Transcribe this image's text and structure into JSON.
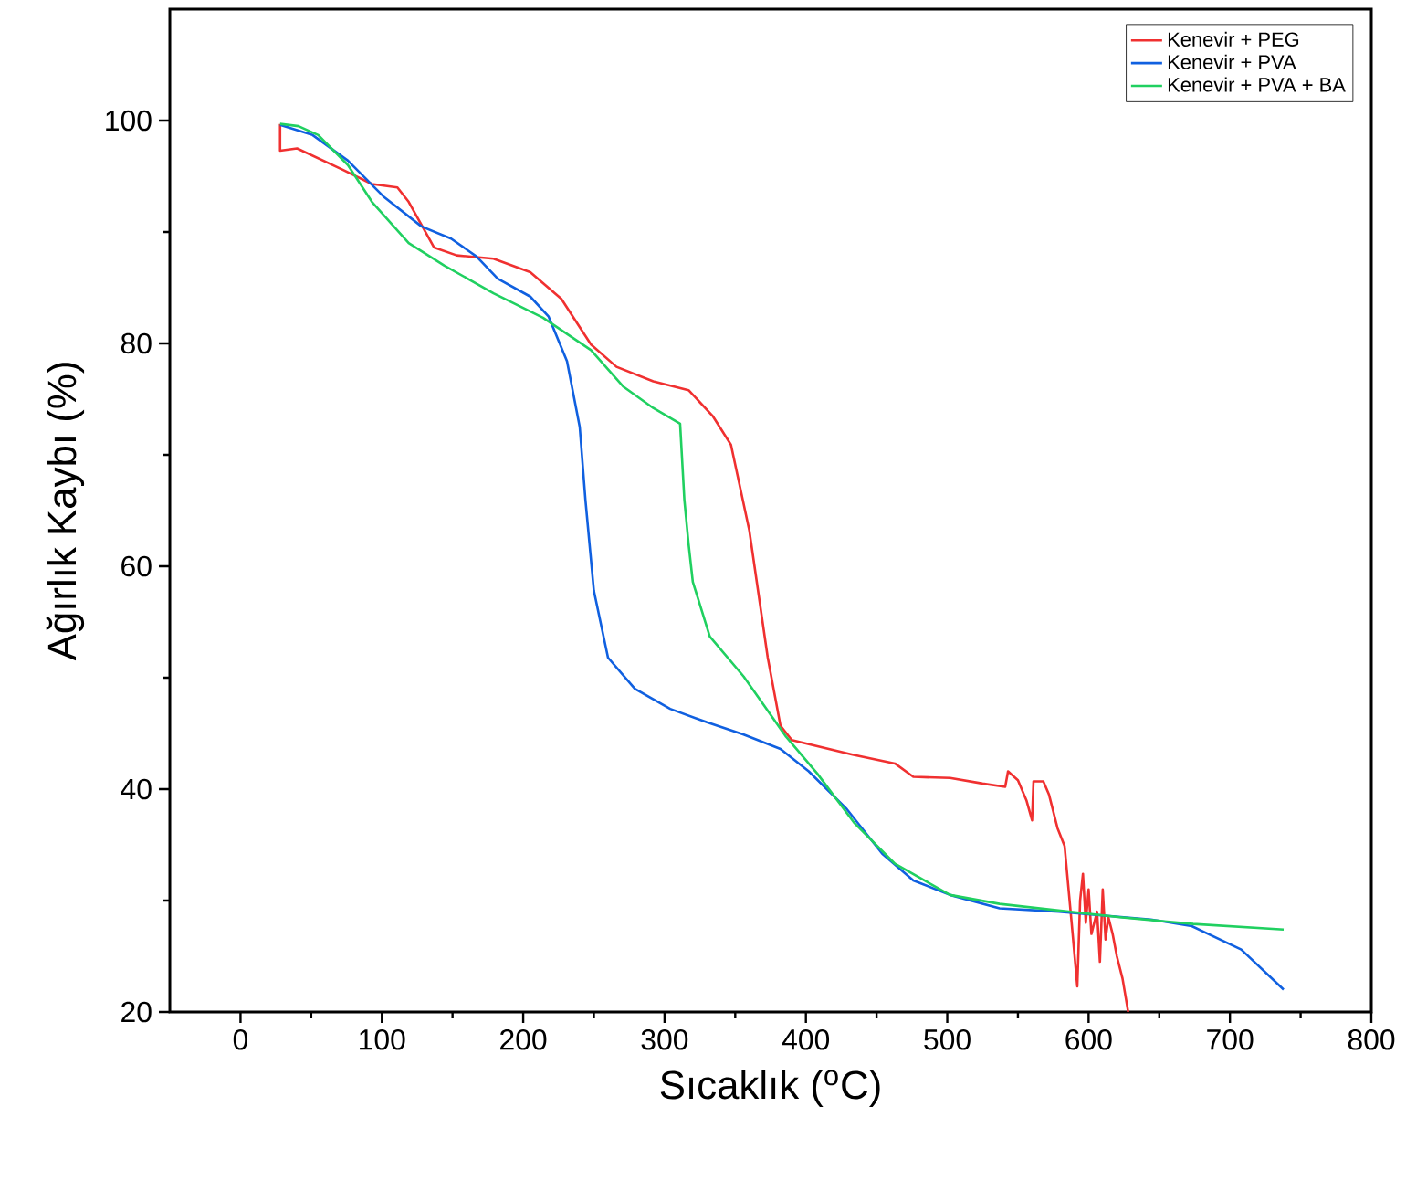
{
  "chart_data": {
    "type": "line",
    "xlabel": "Sıcaklık ($^{o}$C)",
    "ylabel": "Ağırlık Kaybı (%)",
    "xlim": [
      -50,
      800
    ],
    "ylim": [
      20,
      110
    ],
    "xticks": [
      0,
      100,
      200,
      300,
      400,
      500,
      600,
      700,
      800
    ],
    "yticks": [
      20,
      40,
      60,
      80,
      100
    ],
    "grid": false,
    "legend": "top right",
    "marker": "none",
    "line_style": "solid",
    "series": [
      {
        "name": "Kenevir + PEG",
        "color": "#f03030",
        "x": [
          28,
          28,
          40,
          72,
          93,
          111,
          119,
          137,
          153,
          179,
          205,
          227,
          248,
          266,
          292,
          317,
          334,
          347,
          360,
          373,
          382,
          390,
          433,
          463,
          476,
          502,
          525,
          541,
          543,
          550,
          556,
          560,
          561,
          568,
          572,
          578,
          583,
          588,
          592,
          594,
          596,
          598,
          600,
          602,
          606,
          608,
          610,
          612,
          614,
          617,
          620,
          624,
          628
        ],
        "values": [
          99.7,
          97.3,
          97.5,
          95.6,
          94.3,
          94,
          92.7,
          88.6,
          87.9,
          87.6,
          86.4,
          84,
          79.9,
          77.9,
          76.6,
          75.8,
          73.5,
          70.9,
          63.2,
          51.8,
          45.7,
          44.4,
          43.1,
          42.3,
          41.1,
          41,
          40.5,
          40.2,
          41.6,
          40.8,
          39,
          37.2,
          40.7,
          40.7,
          39.5,
          36.5,
          34.9,
          28,
          22.3,
          30,
          32.4,
          28,
          31,
          27,
          29,
          24.5,
          31,
          26.5,
          28.5,
          27,
          25,
          23,
          20
        ]
      },
      {
        "name": "Kenevir + PVA",
        "color": "#1060e0",
        "x": [
          28,
          51,
          76,
          101,
          128,
          149,
          167,
          182,
          205,
          218,
          231,
          240,
          244,
          250,
          260,
          279,
          304,
          330,
          356,
          382,
          402,
          429,
          454,
          476,
          502,
          537,
          579,
          644,
          673,
          708,
          738
        ],
        "values": [
          99.6,
          98.7,
          96.4,
          93.2,
          90.5,
          89.4,
          87.8,
          85.8,
          84.2,
          82.4,
          78.4,
          72.5,
          66,
          57.8,
          51.8,
          49,
          47.2,
          46,
          44.9,
          43.6,
          41.6,
          38.2,
          34.2,
          31.8,
          30.5,
          29.3,
          29,
          28.3,
          27.7,
          25.6,
          22
        ]
      },
      {
        "name": "Kenevir + PVA + BA",
        "color": "#20d060",
        "x": [
          28,
          41,
          55,
          76,
          93,
          119,
          144,
          179,
          214,
          248,
          271,
          292,
          311,
          314,
          317,
          320,
          332,
          356,
          386,
          408,
          434,
          463,
          502,
          537,
          622,
          674,
          738
        ],
        "values": [
          99.7,
          99.5,
          98.7,
          96,
          92.7,
          89,
          87,
          84.5,
          82.3,
          79.4,
          76.1,
          74.2,
          72.8,
          66,
          62,
          58.6,
          53.7,
          50.1,
          44.7,
          41.4,
          37,
          33.3,
          30.5,
          29.7,
          28.5,
          27.9,
          27.4
        ]
      }
    ]
  }
}
